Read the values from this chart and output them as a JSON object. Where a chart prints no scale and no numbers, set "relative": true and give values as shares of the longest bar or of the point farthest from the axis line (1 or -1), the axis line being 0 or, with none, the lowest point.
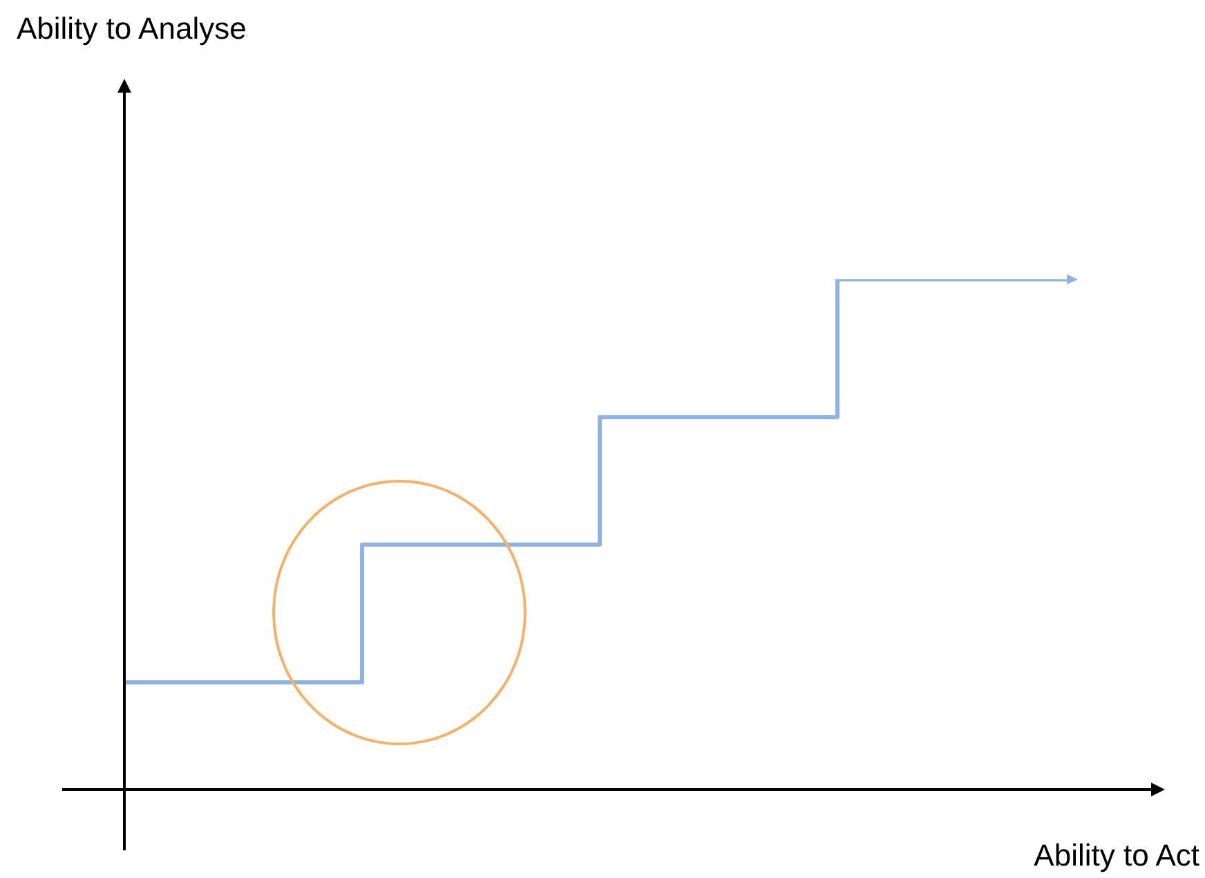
{
  "chart_data": {
    "type": "step",
    "categories": [
      null,
      null,
      null,
      null,
      null
    ],
    "values": [
      0.21,
      0.48,
      0.73,
      1,
      1
    ],
    "color": "#8db3e2",
    "relative": true,
    "xlabel": "Ability to Act",
    "annotations": [
      "Ability to Analyse"
    ],
    "tick_labels": false,
    "marker": "none"
  }
}
